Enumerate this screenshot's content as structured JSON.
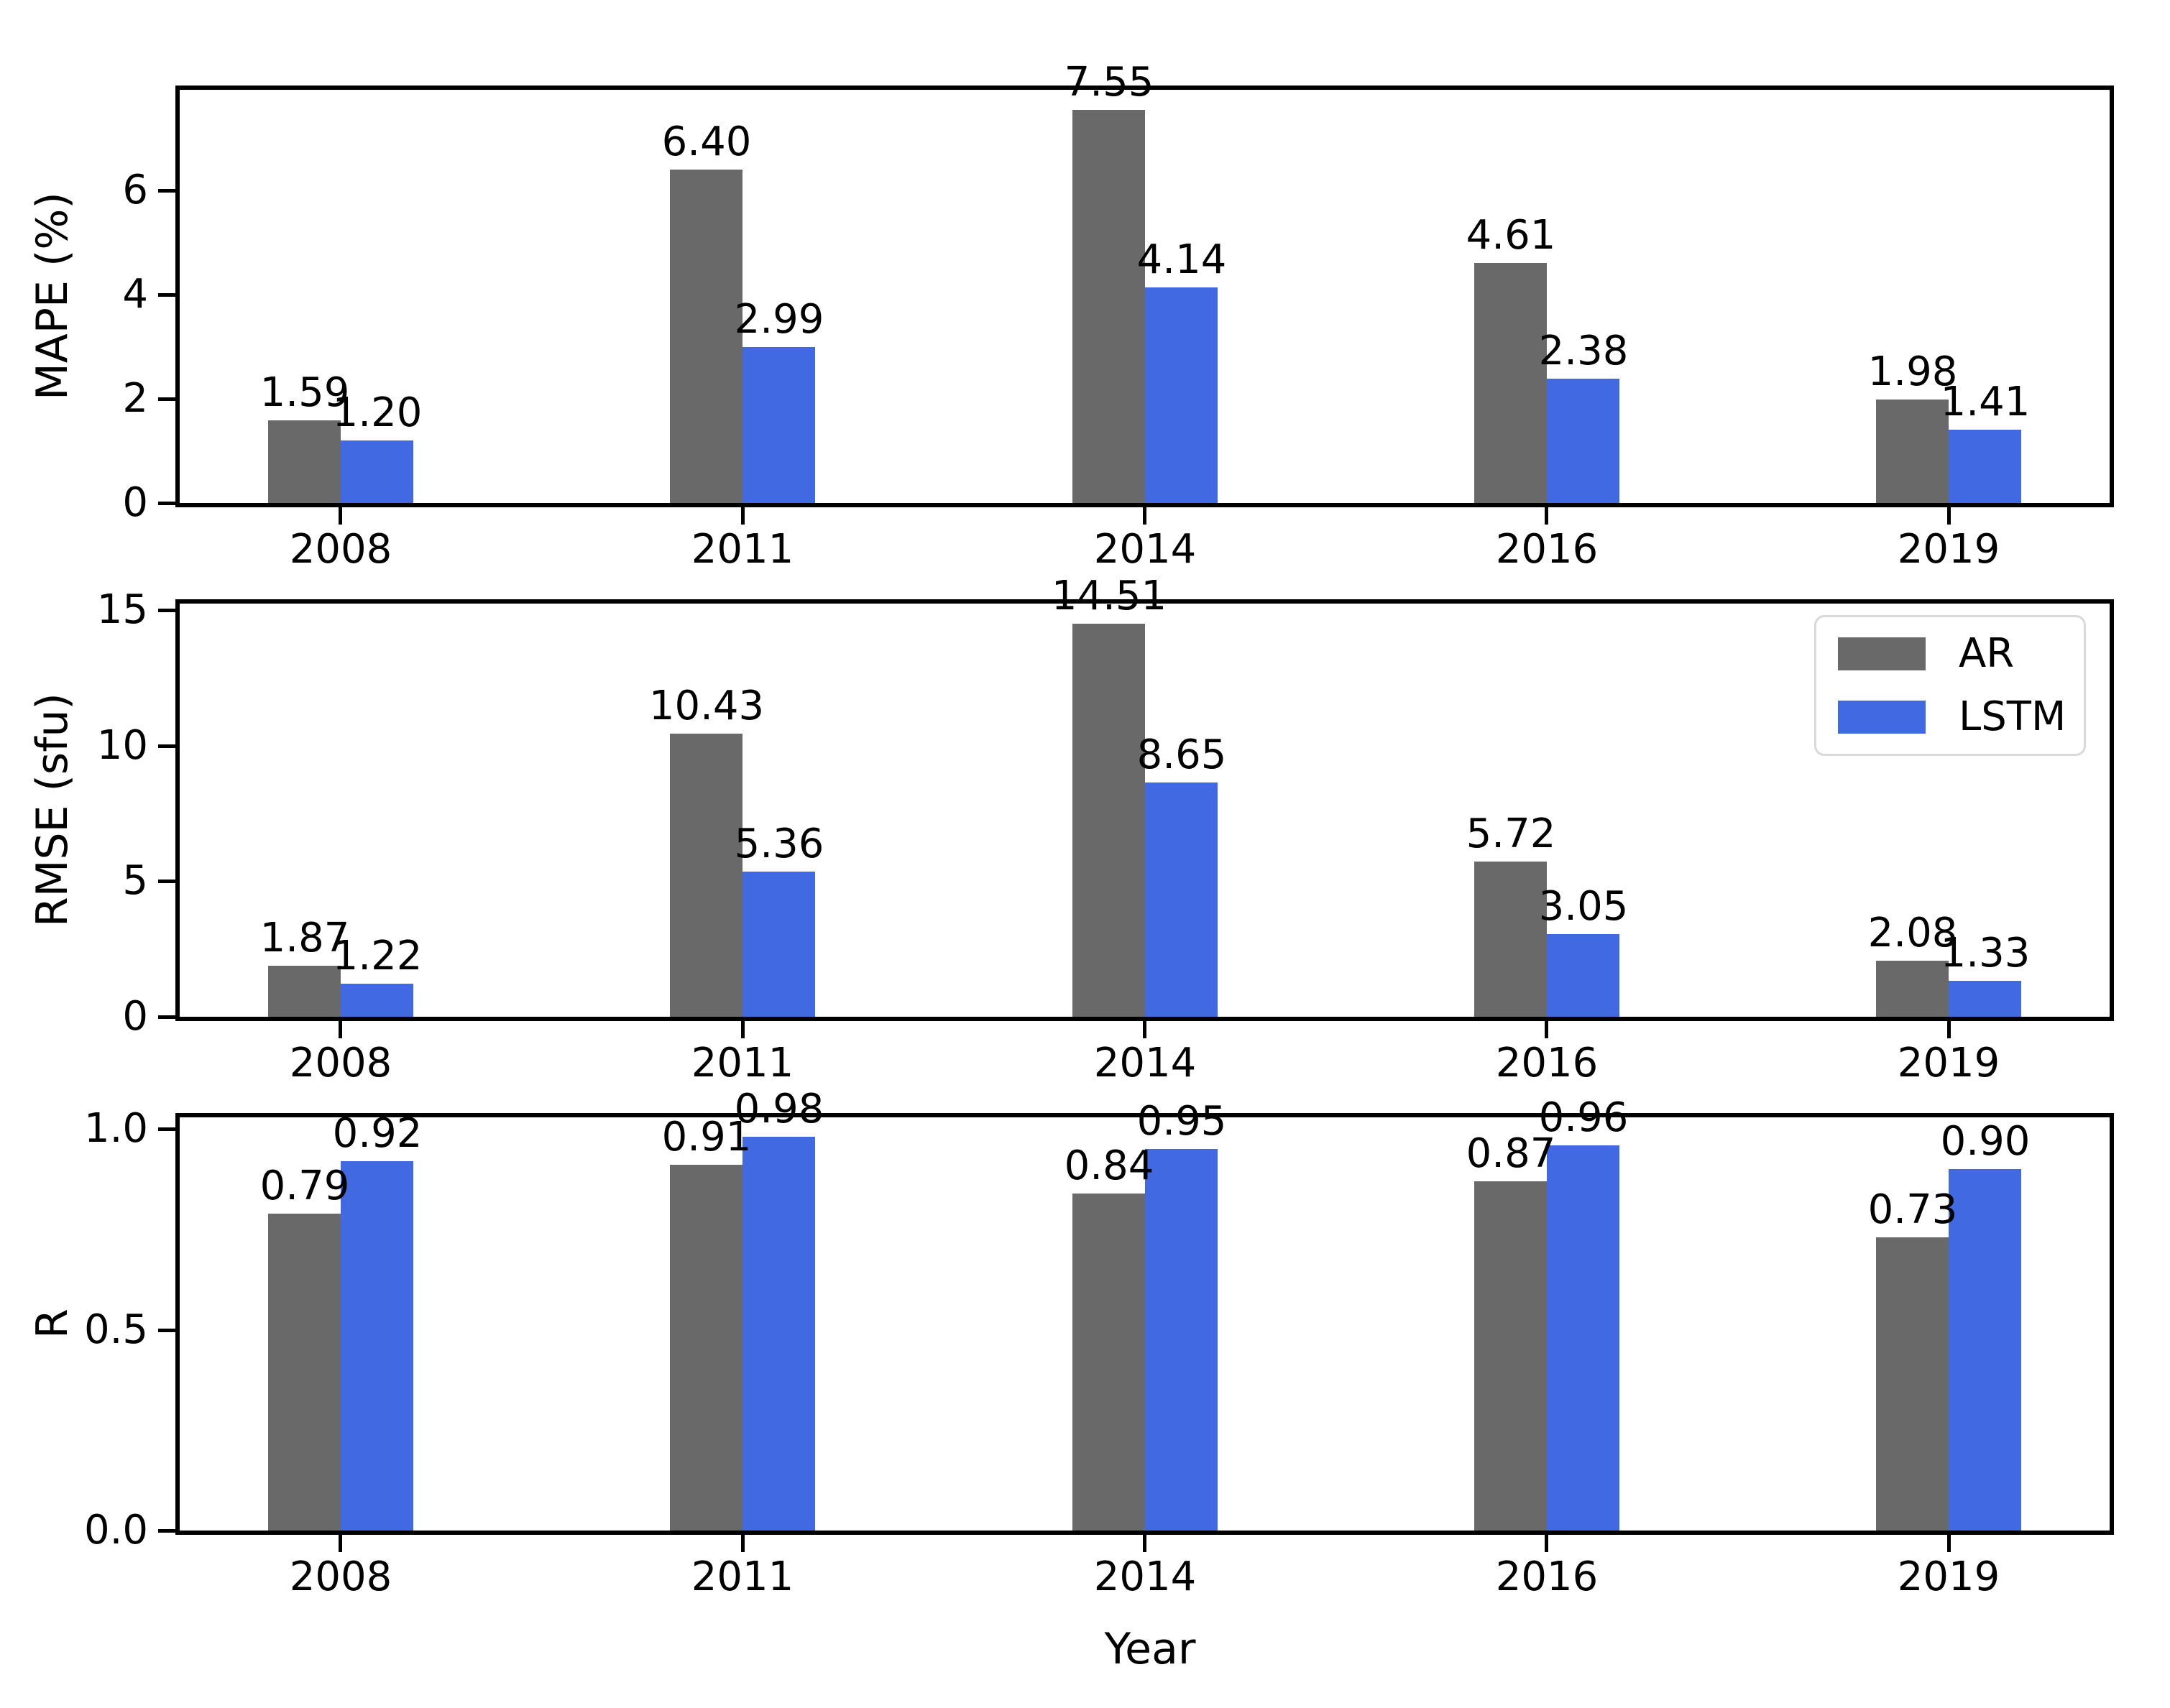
{
  "figure": {
    "background": "#ffffff",
    "text_color": "#000000",
    "spine_color": "#000000"
  },
  "colors": {
    "ar": "#696969",
    "lstm": "#4169E1",
    "legend_border": "#d9d9d9"
  },
  "legend": {
    "entries": [
      {
        "label": "AR",
        "color": "#696969"
      },
      {
        "label": "LSTM",
        "color": "#4169E1"
      }
    ],
    "position": "upper-right-of-rmse-subplot"
  },
  "xlabel": "Year",
  "chart_data": [
    {
      "type": "bar",
      "ylabel": "MAPE (%)",
      "xlabel": "",
      "categories": [
        "2008",
        "2011",
        "2014",
        "2016",
        "2019"
      ],
      "series": [
        {
          "name": "AR",
          "color": "#696969",
          "values": [
            1.59,
            6.4,
            7.55,
            4.61,
            1.98
          ]
        },
        {
          "name": "LSTM",
          "color": "#4169E1",
          "values": [
            1.2,
            2.99,
            4.14,
            2.38,
            1.41
          ]
        }
      ],
      "value_label_decimals": 2,
      "ytick_labels": [
        "0",
        "2",
        "4",
        "6"
      ],
      "yticks": [
        0,
        2,
        4,
        6
      ],
      "ylim": [
        0,
        7.93
      ],
      "grid": false,
      "legend": false
    },
    {
      "type": "bar",
      "ylabel": "RMSE (sfu)",
      "xlabel": "",
      "categories": [
        "2008",
        "2011",
        "2014",
        "2016",
        "2019"
      ],
      "series": [
        {
          "name": "AR",
          "color": "#696969",
          "values": [
            1.87,
            10.43,
            14.51,
            5.72,
            2.08
          ]
        },
        {
          "name": "LSTM",
          "color": "#4169E1",
          "values": [
            1.22,
            5.36,
            8.65,
            3.05,
            1.33
          ]
        }
      ],
      "value_label_decimals": 2,
      "ytick_labels": [
        "0",
        "5",
        "10",
        "15"
      ],
      "yticks": [
        0,
        5,
        10,
        15
      ],
      "ylim": [
        0,
        15.24
      ],
      "grid": false,
      "legend": true,
      "legend_position": "upper right"
    },
    {
      "type": "bar",
      "ylabel": "R",
      "xlabel": "Year",
      "categories": [
        "2008",
        "2011",
        "2014",
        "2016",
        "2019"
      ],
      "series": [
        {
          "name": "AR",
          "color": "#696969",
          "values": [
            0.79,
            0.91,
            0.84,
            0.87,
            0.73
          ]
        },
        {
          "name": "LSTM",
          "color": "#4169E1",
          "values": [
            0.92,
            0.98,
            0.95,
            0.96,
            0.9
          ]
        }
      ],
      "value_label_decimals": 2,
      "ytick_labels": [
        "0.0",
        "0.5",
        "1.0"
      ],
      "yticks": [
        0.0,
        0.5,
        1.0
      ],
      "ylim": [
        0,
        1.029
      ],
      "grid": false,
      "legend": false
    }
  ]
}
